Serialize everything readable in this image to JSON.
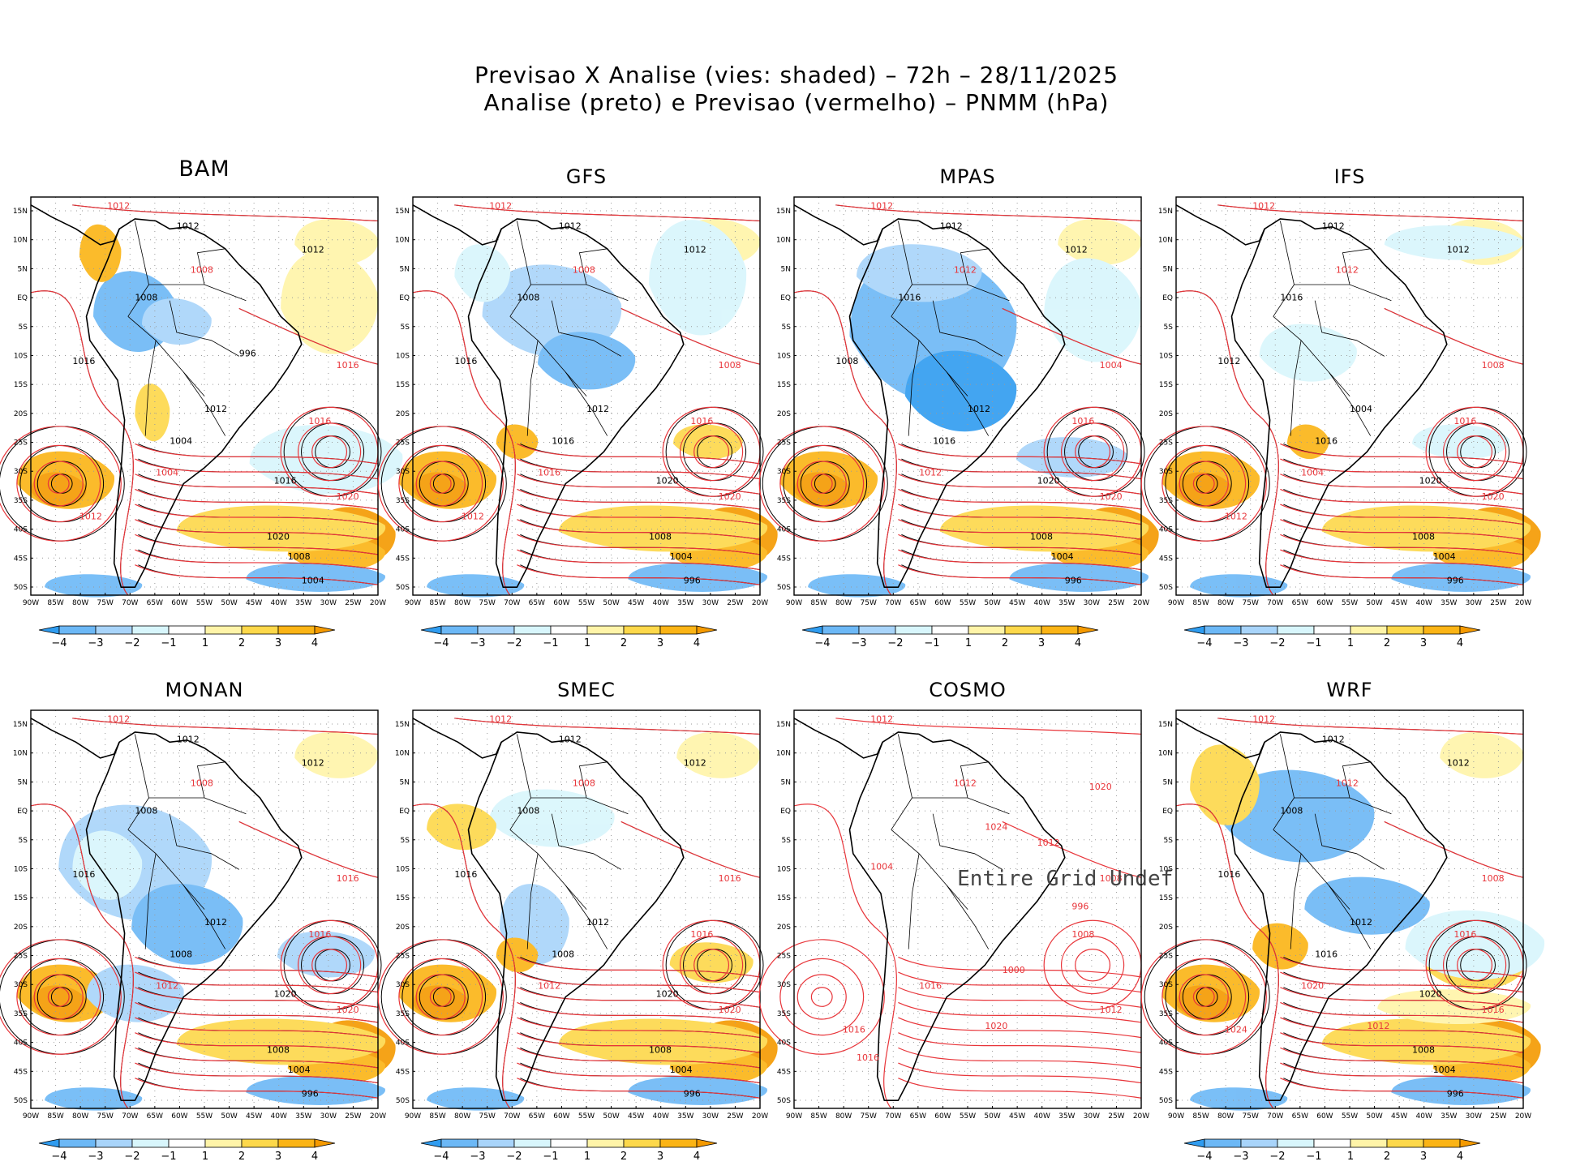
{
  "figure": {
    "title_line1": "Previsao X Analise (vies: shaded) – 72h – 28/11/2025",
    "title_line2": "Analise (preto) e Previsao (vermelho) – PNMM (hPa)"
  },
  "axes": {
    "lat_labels": [
      "15N",
      "10N",
      "5N",
      "EQ",
      "5S",
      "10S",
      "15S",
      "20S",
      "25S",
      "30S",
      "35S",
      "40S",
      "45S",
      "50S"
    ],
    "lon_labels": [
      "90W",
      "85W",
      "80W",
      "75W",
      "70W",
      "65W",
      "60W",
      "55W",
      "50W",
      "45W",
      "40W",
      "35W",
      "30W",
      "25W",
      "20W"
    ]
  },
  "colorbar": {
    "labels": [
      "−4",
      "−3",
      "−2",
      "−1",
      "1",
      "2",
      "3",
      "4"
    ],
    "colors": [
      "#2f9cf0",
      "#6cb8f6",
      "#a8d4fa",
      "#d8f6fc",
      "#ffffff",
      "#fff4a8",
      "#fdd84a",
      "#fbb415",
      "#f59a00"
    ]
  },
  "colors": {
    "analysis": "#000000",
    "forecast": "#e8353a"
  },
  "panels": [
    {
      "name": "BAM",
      "undefined": false,
      "labels_black": [
        "1012",
        "1012",
        "1008",
        "1016",
        "1012",
        "1004",
        "1016",
        "1020",
        "1008",
        "1004",
        "996"
      ],
      "labels_red": [
        "1012",
        "1008",
        "1016",
        "1016",
        "1020",
        "1004",
        "1012"
      ]
    },
    {
      "name": "GFS",
      "undefined": false,
      "labels_black": [
        "1012",
        "1012",
        "1008",
        "1016",
        "1012",
        "1016",
        "1020",
        "1008",
        "1004",
        "996"
      ],
      "labels_red": [
        "1012",
        "1008",
        "1008",
        "1016",
        "1020",
        "1016",
        "1012"
      ]
    },
    {
      "name": "MPAS",
      "undefined": false,
      "labels_black": [
        "1012",
        "1012",
        "1016",
        "1008",
        "1012",
        "1016",
        "1020",
        "1008",
        "1004",
        "996"
      ],
      "labels_red": [
        "1012",
        "1012",
        "1004",
        "1016",
        "1020",
        "1012"
      ]
    },
    {
      "name": "IFS",
      "undefined": false,
      "labels_black": [
        "1012",
        "1012",
        "1016",
        "1012",
        "1004",
        "1016",
        "1020",
        "1008",
        "1004",
        "996"
      ],
      "labels_red": [
        "1012",
        "1012",
        "1008",
        "1016",
        "1020",
        "1004",
        "1012"
      ]
    },
    {
      "name": "MONAN",
      "undefined": false,
      "labels_black": [
        "1012",
        "1012",
        "1008",
        "1016",
        "1012",
        "1008",
        "1020",
        "1008",
        "1004",
        "996"
      ],
      "labels_red": [
        "1012",
        "1008",
        "1016",
        "1016",
        "1020",
        "1012"
      ]
    },
    {
      "name": "SMEC",
      "undefined": false,
      "labels_black": [
        "1012",
        "1012",
        "1008",
        "1016",
        "1012",
        "1008",
        "1020",
        "1008",
        "1004",
        "996"
      ],
      "labels_red": [
        "1012",
        "1008",
        "1016",
        "1016",
        "1020",
        "1012"
      ]
    },
    {
      "name": "COSMO",
      "undefined": true,
      "undef_text": "Entire Grid Undef",
      "labels_black": [],
      "labels_red": [
        "1012",
        "1012",
        "1008",
        "1008",
        "1012",
        "1016",
        "1016",
        "1020",
        "1024",
        "1020",
        "1004",
        "1000",
        "996",
        "1012",
        "1016"
      ]
    },
    {
      "name": "WRF",
      "undefined": false,
      "labels_black": [
        "1012",
        "1012",
        "1008",
        "1016",
        "1012",
        "1016",
        "1020",
        "1008",
        "1004",
        "996"
      ],
      "labels_red": [
        "1012",
        "1012",
        "1008",
        "1016",
        "1016",
        "1020",
        "1024",
        "1012"
      ]
    }
  ]
}
